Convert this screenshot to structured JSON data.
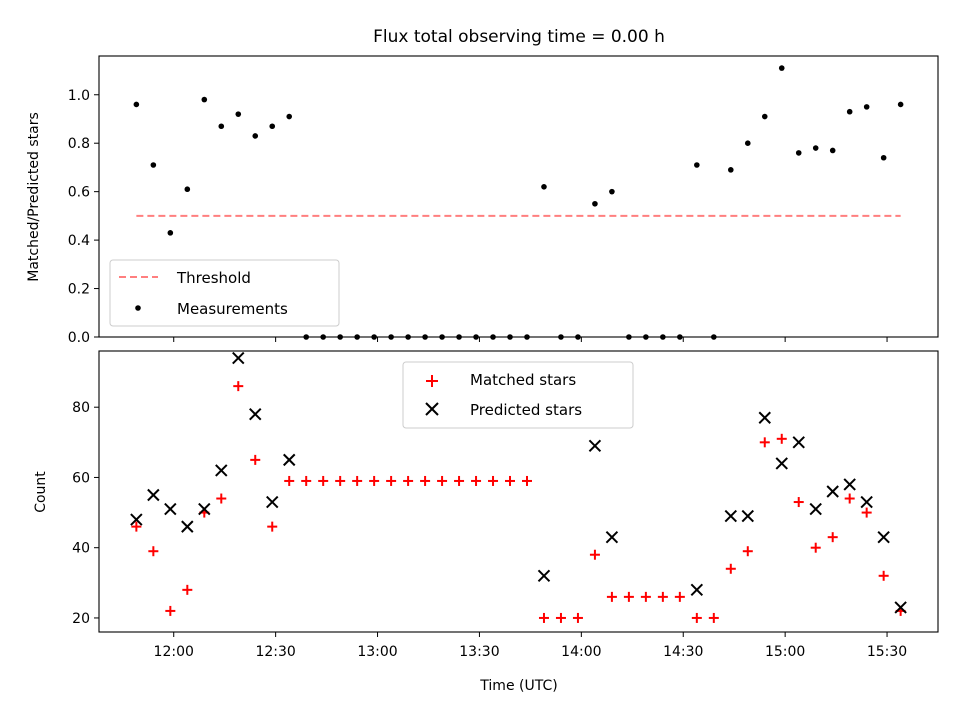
{
  "chart_data": [
    {
      "type": "scatter",
      "title": "Flux total observing time = 0.00 h",
      "ylabel": "Matched/Predicted stars",
      "xlabel": "",
      "ylim": [
        0,
        1.16
      ],
      "yticks": [
        "0.0",
        "0.2",
        "0.4",
        "0.6",
        "0.8",
        "1.0"
      ],
      "legend": {
        "position": "lower-left",
        "entries": [
          "Threshold",
          "Measurements"
        ]
      },
      "threshold": {
        "name": "Threshold",
        "value": 0.5,
        "x_start": "11:49",
        "x_end": "15:34",
        "color": "#ff7f7f",
        "style": "dashed"
      },
      "series": [
        {
          "name": "Measurements",
          "color": "#000000",
          "x": [
            "11:49",
            "11:54",
            "11:59",
            "12:04",
            "12:09",
            "12:14",
            "12:19",
            "12:24",
            "12:29",
            "12:34",
            "12:39",
            "12:44",
            "12:49",
            "12:54",
            "12:59",
            "13:04",
            "13:09",
            "13:14",
            "13:19",
            "13:24",
            "13:29",
            "13:34",
            "13:39",
            "13:44",
            "13:49",
            "13:54",
            "13:59",
            "14:04",
            "14:09",
            "14:14",
            "14:19",
            "14:24",
            "14:29",
            "14:34",
            "14:39",
            "14:44",
            "14:49",
            "14:54",
            "14:59",
            "15:04",
            "15:09",
            "15:14",
            "15:19",
            "15:24",
            "15:29",
            "15:34"
          ],
          "y": [
            0.96,
            0.71,
            0.43,
            0.61,
            0.98,
            0.87,
            0.92,
            0.83,
            0.87,
            0.91,
            0,
            0,
            0,
            0,
            0,
            0,
            0,
            0,
            0,
            0,
            0,
            0,
            0,
            0,
            0.62,
            0,
            0,
            0.55,
            0.6,
            0,
            0,
            0,
            0,
            0.71,
            0,
            0.69,
            0.8,
            0.91,
            1.11,
            0.76,
            0.78,
            0.77,
            0.93,
            0.95,
            0.74,
            0.96
          ]
        }
      ]
    },
    {
      "type": "scatter",
      "title": "",
      "ylabel": "Count",
      "xlabel": "Time (UTC)",
      "ylim": [
        16,
        96
      ],
      "yticks": [
        "20",
        "40",
        "60",
        "80"
      ],
      "xlim": [
        "11:38",
        "15:45"
      ],
      "xticks": [
        "12:00",
        "12:30",
        "13:00",
        "13:30",
        "14:00",
        "14:30",
        "15:00",
        "15:30"
      ],
      "legend": {
        "position": "upper-center",
        "entries": [
          "Matched stars",
          "Predicted stars"
        ]
      },
      "series": [
        {
          "name": "Matched stars",
          "marker": "plus",
          "color": "#ff0000",
          "x": [
            "11:49",
            "11:54",
            "11:59",
            "12:04",
            "12:09",
            "12:14",
            "12:19",
            "12:24",
            "12:29",
            "12:34",
            "12:39",
            "12:44",
            "12:49",
            "12:54",
            "12:59",
            "13:04",
            "13:09",
            "13:14",
            "13:19",
            "13:24",
            "13:29",
            "13:34",
            "13:39",
            "13:44",
            "13:49",
            "13:54",
            "13:59",
            "14:04",
            "14:09",
            "14:14",
            "14:19",
            "14:24",
            "14:29",
            "14:34",
            "14:39",
            "14:44",
            "14:49",
            "14:54",
            "14:59",
            "15:04",
            "15:09",
            "15:14",
            "15:19",
            "15:24",
            "15:29",
            "15:34"
          ],
          "y": [
            46,
            39,
            22,
            28,
            50,
            54,
            86,
            65,
            46,
            59,
            59,
            59,
            59,
            59,
            59,
            59,
            59,
            59,
            59,
            59,
            59,
            59,
            59,
            59,
            20,
            20,
            20,
            38,
            26,
            26,
            26,
            26,
            26,
            20,
            20,
            34,
            39,
            70,
            71,
            53,
            40,
            43,
            54,
            50,
            32,
            22
          ]
        },
        {
          "name": "Predicted stars",
          "marker": "x",
          "color": "#000000",
          "x": [
            "11:49",
            "11:54",
            "11:59",
            "12:04",
            "12:09",
            "12:14",
            "12:19",
            "12:24",
            "12:29",
            "12:34",
            "13:49",
            "14:04",
            "14:09",
            "14:34",
            "14:44",
            "14:49",
            "14:54",
            "14:59",
            "15:04",
            "15:09",
            "15:14",
            "15:19",
            "15:24",
            "15:29",
            "15:34"
          ],
          "y": [
            48,
            55,
            51,
            46,
            51,
            62,
            94,
            78,
            53,
            65,
            32,
            69,
            43,
            28,
            49,
            49,
            77,
            64,
            70,
            51,
            56,
            58,
            53,
            43,
            23
          ]
        }
      ]
    }
  ]
}
